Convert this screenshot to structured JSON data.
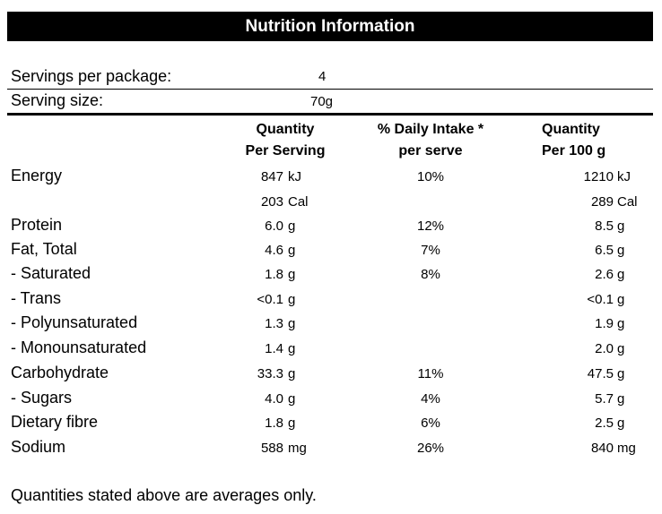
{
  "title": "Nutrition Information",
  "servings": {
    "per_package_label": "Servings per package:",
    "per_package_value": "4",
    "size_label": "Serving size:",
    "size_value": "70g"
  },
  "columns": {
    "per_serving_line1": "Quantity",
    "per_serving_line2": "Per Serving",
    "daily_line1": "% Daily Intake *",
    "daily_line2": "per serve",
    "per_100g_line1": "Quantity",
    "per_100g_line2": "Per 100 g"
  },
  "rows": [
    {
      "label": "Energy",
      "serv": "847",
      "serv_unit": "kJ",
      "pct": "10%",
      "p100": "1210",
      "p100_unit": "kJ"
    },
    {
      "label": "",
      "serv": "203",
      "serv_unit": "Cal",
      "pct": "",
      "p100": "289",
      "p100_unit": "Cal"
    },
    {
      "label": "Protein",
      "serv": "6.0",
      "serv_unit": "g",
      "pct": "12%",
      "p100": "8.5",
      "p100_unit": "g"
    },
    {
      "label": "Fat, Total",
      "serv": "4.6",
      "serv_unit": "g",
      "pct": "7%",
      "p100": "6.5",
      "p100_unit": "g"
    },
    {
      "label": "- Saturated",
      "serv": "1.8",
      "serv_unit": "g",
      "pct": "8%",
      "p100": "2.6",
      "p100_unit": "g"
    },
    {
      "label": "- Trans",
      "serv": "<0.1",
      "serv_unit": "g",
      "pct": "",
      "p100": "<0.1",
      "p100_unit": "g"
    },
    {
      "label": "- Polyunsaturated",
      "serv": "1.3",
      "serv_unit": "g",
      "pct": "",
      "p100": "1.9",
      "p100_unit": "g"
    },
    {
      "label": "- Monounsaturated",
      "serv": "1.4",
      "serv_unit": "g",
      "pct": "",
      "p100": "2.0",
      "p100_unit": "g"
    },
    {
      "label": "Carbohydrate",
      "serv": "33.3",
      "serv_unit": "g",
      "pct": "11%",
      "p100": "47.5",
      "p100_unit": "g"
    },
    {
      "label": "- Sugars",
      "serv": "4.0",
      "serv_unit": "g",
      "pct": "4%",
      "p100": "5.7",
      "p100_unit": "g"
    },
    {
      "label": "Dietary fibre",
      "serv": "1.8",
      "serv_unit": "g",
      "pct": "6%",
      "p100": "2.5",
      "p100_unit": "g"
    },
    {
      "label": "Sodium",
      "serv": "588",
      "serv_unit": "mg",
      "pct": "26%",
      "p100": "840",
      "p100_unit": "mg"
    }
  ],
  "footnote": "Quantities stated above are averages only."
}
